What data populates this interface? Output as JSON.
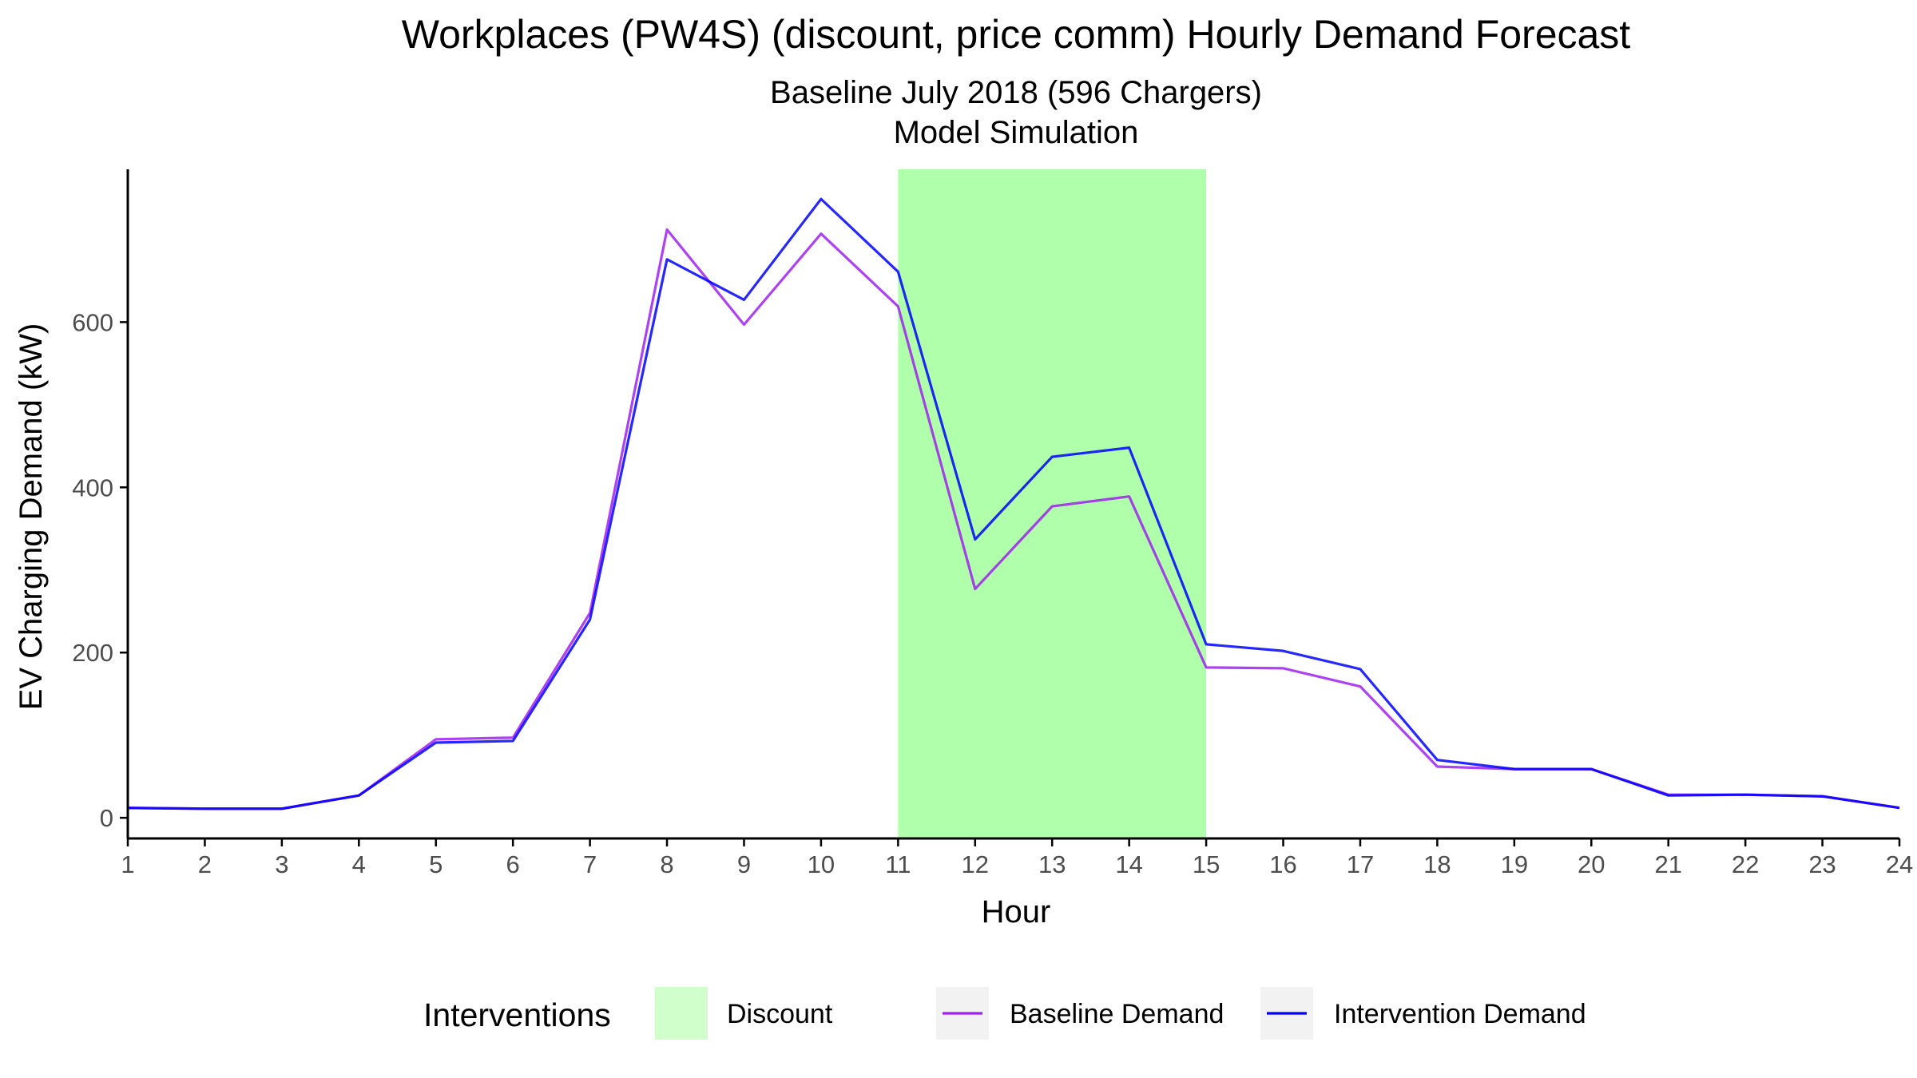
{
  "chart_data": {
    "type": "line",
    "title": "Workplaces (PW4S) (discount, price comm) Hourly Demand Forecast",
    "subtitle_lines": [
      "Baseline July 2018 (596 Chargers)",
      "Model Simulation"
    ],
    "xlabel": "Hour",
    "ylabel": "EV Charging Demand (kW)",
    "x": [
      1,
      2,
      3,
      4,
      5,
      6,
      7,
      8,
      9,
      10,
      11,
      12,
      13,
      14,
      15,
      16,
      17,
      18,
      19,
      20,
      21,
      22,
      23,
      24
    ],
    "x_ticks": [
      1,
      2,
      3,
      4,
      5,
      6,
      7,
      8,
      9,
      10,
      11,
      12,
      13,
      14,
      15,
      16,
      17,
      18,
      19,
      20,
      21,
      22,
      23,
      24
    ],
    "xlim": [
      1,
      24
    ],
    "y_ticks": [
      0,
      200,
      400,
      600
    ],
    "ylim": [
      -25,
      785
    ],
    "series": [
      {
        "name": "Baseline Demand",
        "color": "#a020f0",
        "values": [
          12,
          11,
          11,
          27,
          95,
          97,
          248,
          712,
          597,
          707,
          619,
          277,
          377,
          389,
          182,
          181,
          159,
          62,
          59,
          59,
          28,
          28,
          26,
          12
        ]
      },
      {
        "name": "Intervention Demand",
        "color": "#0000ff",
        "values": [
          12,
          11,
          11,
          27,
          91,
          93,
          240,
          676,
          627,
          749,
          661,
          337,
          437,
          448,
          210,
          202,
          180,
          70,
          59,
          59,
          27,
          28,
          26,
          12
        ]
      }
    ],
    "shaded_regions": [
      {
        "name": "Discount",
        "x_start": 11,
        "x_end": 15,
        "color": "#b0ffaa"
      }
    ],
    "legend": {
      "title": "Interventions",
      "placement": "bottom",
      "items": [
        {
          "label": "Discount",
          "kind": "fill",
          "color": "#b0ffaa"
        },
        {
          "label": "Baseline Demand",
          "kind": "line",
          "color": "#a020f0"
        },
        {
          "label": "Intervention Demand",
          "kind": "line",
          "color": "#0000ff"
        }
      ]
    },
    "grid": false,
    "theme": {
      "axis_color": "#000000",
      "tick_label_color": "#4d4d4d",
      "legend_key_bg": "#f2f2f2"
    }
  }
}
